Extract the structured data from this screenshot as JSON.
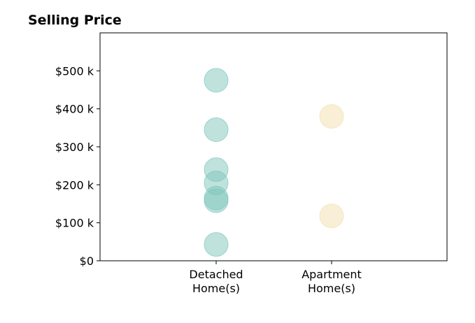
{
  "chart_data": {
    "type": "scatter",
    "title": "Selling Price",
    "xlabel": "",
    "ylabel": "",
    "categories": [
      {
        "line1": "Detached",
        "line2": "Home(s)"
      },
      {
        "line1": "Apartment",
        "line2": "Home(s)"
      }
    ],
    "y_ticks": [
      {
        "value": 0,
        "label": "$0"
      },
      {
        "value": 100000,
        "label": "$100 k"
      },
      {
        "value": 200000,
        "label": "$200 k"
      },
      {
        "value": 300000,
        "label": "$300 k"
      },
      {
        "value": 400000,
        "label": "$400 k"
      },
      {
        "value": 500000,
        "label": "$500 k"
      }
    ],
    "ylim": [
      0,
      600000
    ],
    "grid": false,
    "series": [
      {
        "category_index": 0,
        "color": "#7fc6bc",
        "values": [
          475000,
          345000,
          240000,
          205000,
          165000,
          158000,
          43000
        ]
      },
      {
        "category_index": 1,
        "color": "#f3dfb0",
        "values": [
          380000,
          118000
        ]
      }
    ]
  }
}
